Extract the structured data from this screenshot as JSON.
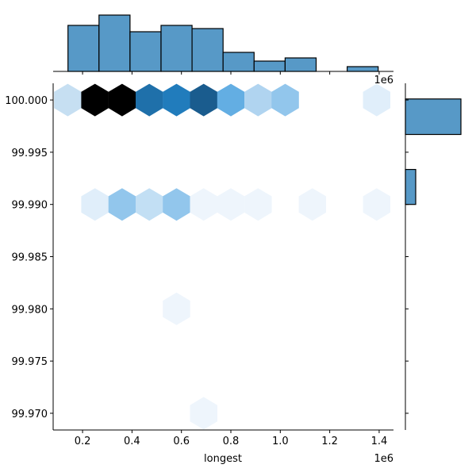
{
  "chart_data": {
    "type": "hexbin-joint",
    "xlabel": "longest",
    "ylabel": "",
    "x_offset_text": "1e6",
    "xlim": [
      0.081,
      1.458
    ],
    "ylim": [
      99.9684,
      100.0016
    ],
    "xticks": [
      0.2,
      0.4,
      0.6,
      0.8,
      1.0,
      1.2,
      1.4
    ],
    "xtick_labels": [
      "0.2",
      "0.4",
      "0.6",
      "0.8",
      "1.0",
      "1.2",
      "1.4"
    ],
    "yticks": [
      100.0,
      99.995,
      99.99,
      99.985,
      99.98,
      99.975,
      99.97
    ],
    "ytick_labels": [
      "100.000",
      "99.995",
      "99.990",
      "99.985",
      "99.980",
      "99.975",
      "99.970"
    ],
    "hexes": [
      {
        "x": 0.14,
        "y": 100.0,
        "color": "#c6dff2"
      },
      {
        "x": 0.25,
        "y": 100.0,
        "color": "#000000"
      },
      {
        "x": 0.36,
        "y": 100.0,
        "color": "#000000"
      },
      {
        "x": 0.47,
        "y": 100.0,
        "color": "#1f70aa"
      },
      {
        "x": 0.58,
        "y": 100.0,
        "color": "#217cbc"
      },
      {
        "x": 0.69,
        "y": 100.0,
        "color": "#1a5c8e"
      },
      {
        "x": 0.8,
        "y": 100.0,
        "color": "#63aee3"
      },
      {
        "x": 0.91,
        "y": 100.0,
        "color": "#b0d4f0"
      },
      {
        "x": 1.02,
        "y": 100.0,
        "color": "#92c6ec"
      },
      {
        "x": 1.39,
        "y": 100.0,
        "color": "#e0eefa"
      },
      {
        "x": 0.25,
        "y": 99.99,
        "color": "#e0eefa"
      },
      {
        "x": 0.36,
        "y": 99.99,
        "color": "#92c6ec"
      },
      {
        "x": 0.47,
        "y": 99.99,
        "color": "#c2dff4"
      },
      {
        "x": 0.58,
        "y": 99.99,
        "color": "#92c6ec"
      },
      {
        "x": 0.69,
        "y": 99.99,
        "color": "#eef5fc"
      },
      {
        "x": 0.8,
        "y": 99.99,
        "color": "#eef5fc"
      },
      {
        "x": 0.91,
        "y": 99.99,
        "color": "#eef5fc"
      },
      {
        "x": 1.13,
        "y": 99.99,
        "color": "#eef5fc"
      },
      {
        "x": 1.39,
        "y": 99.99,
        "color": "#eef5fc"
      },
      {
        "x": 0.58,
        "y": 99.98,
        "color": "#eef5fc"
      },
      {
        "x": 0.69,
        "y": 99.97,
        "color": "#eef5fc"
      }
    ],
    "top_hist": {
      "bin_edges": [
        0.141,
        0.2665,
        0.392,
        0.5175,
        0.643,
        0.7685,
        0.894,
        1.0195,
        1.145,
        1.2705,
        1.396
      ],
      "counts": [
        58,
        71,
        50,
        58,
        54,
        24,
        13,
        17,
        0,
        6
      ],
      "color": "#5799c7"
    },
    "right_hist": {
      "bins": [
        {
          "y0": 99.9967,
          "y1": 100.0001,
          "count": 70
        },
        {
          "y0": 99.99,
          "y1": 99.99335,
          "count": 13
        }
      ],
      "color": "#5799c7"
    }
  }
}
